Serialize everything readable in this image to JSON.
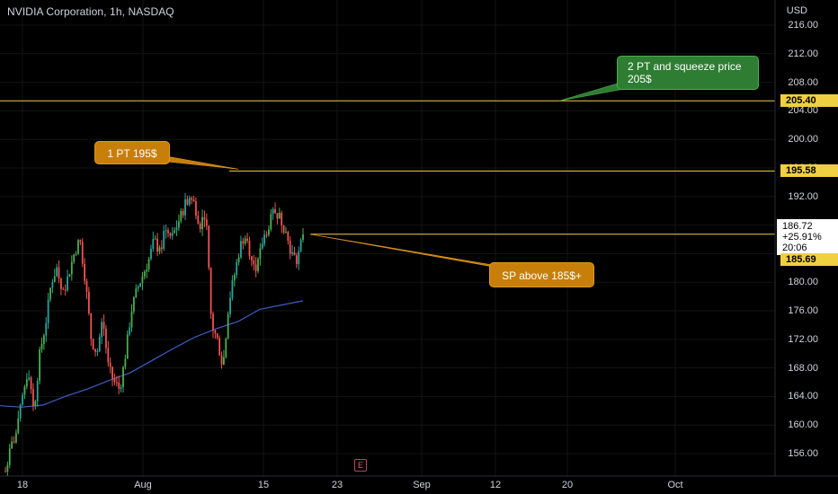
{
  "header": {
    "title": "NVIDIA Corporation, 1h, NASDAQ",
    "currency": "USD"
  },
  "chart_data": {
    "type": "candlestick",
    "symbol": "NVIDIA Corporation",
    "interval": "1h",
    "exchange": "NASDAQ",
    "ylim": [
      152.0,
      218.0
    ],
    "y_ticks": [
      "216.00",
      "212.00",
      "208.00",
      "204.00",
      "200.00",
      "196.00",
      "192.00",
      "188.00",
      "184.00",
      "180.00",
      "176.00",
      "172.00",
      "168.00",
      "164.00",
      "160.00",
      "156.00"
    ],
    "x_tick_labels": [
      "18",
      "Aug",
      "15",
      "23",
      "Sep",
      "12",
      "20",
      "Oct"
    ],
    "price_path": [
      153.5,
      157,
      159,
      164,
      168,
      162,
      170,
      174,
      180,
      182,
      178,
      181,
      184,
      186,
      180,
      172,
      170,
      175,
      168,
      166,
      165,
      170,
      176,
      179,
      181,
      183,
      186,
      184,
      188,
      186,
      188,
      190,
      192,
      191,
      188,
      190,
      174,
      172,
      168,
      177,
      181,
      185,
      187,
      183,
      182,
      186,
      188,
      190,
      189,
      187,
      184,
      183,
      186.7
    ],
    "moving_average": [
      162.7,
      162.5,
      162.8,
      164,
      165,
      166.2,
      167.3,
      169,
      170.7,
      172.3,
      173.5,
      174.5,
      176.2,
      176.8,
      177.4
    ],
    "horizontal_levels": [
      {
        "price": 205.4,
        "label": "205.40",
        "color": "#f0d040"
      },
      {
        "price": 195.58,
        "label": "195.58",
        "color": "#f0d040"
      },
      {
        "price": 186.72,
        "label": "186.72",
        "color": "#f0d040"
      }
    ],
    "last_price": {
      "price": "186.72",
      "change": "+25.91%",
      "countdown": "20:06"
    },
    "alert_price": "185.69",
    "annotations": [
      {
        "text": "2 PT and squeeze price\n205$",
        "color": "#2e7d32"
      },
      {
        "text": "1 PT 195$",
        "color": "#c77f0a"
      },
      {
        "text": "SP above 185$+",
        "color": "#c77f0a"
      }
    ],
    "earnings_marker": "E",
    "grid": true
  },
  "colors": {
    "up": "#26a69a",
    "up_bright": "#4caf50",
    "down": "#ef5350",
    "ma": "#3d5ec5",
    "level": "#f0d040",
    "background": "#000000"
  }
}
